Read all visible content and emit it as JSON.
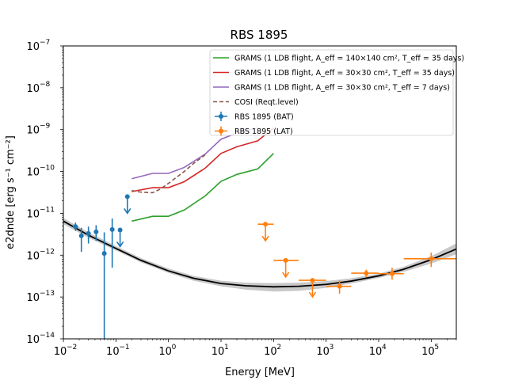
{
  "chart_data": {
    "type": "scatter",
    "title": "RBS 1895",
    "xlabel": "Energy [MeV]",
    "ylabel": "e2dnde [erg s⁻¹ cm⁻²]",
    "xscale": "log",
    "yscale": "log",
    "xlim": [
      0.01,
      300000
    ],
    "ylim": [
      1e-14,
      1e-07
    ],
    "grid": false,
    "legend_position": "top-right",
    "x_ticks": [
      {
        "label": "10",
        "exp": "−2",
        "value": 0.01
      },
      {
        "label": "10",
        "exp": "−1",
        "value": 0.1
      },
      {
        "label": "10",
        "exp": "0",
        "value": 1
      },
      {
        "label": "10",
        "exp": "1",
        "value": 10
      },
      {
        "label": "10",
        "exp": "2",
        "value": 100
      },
      {
        "label": "10",
        "exp": "3",
        "value": 1000
      },
      {
        "label": "10",
        "exp": "4",
        "value": 10000
      },
      {
        "label": "10",
        "exp": "5",
        "value": 100000
      }
    ],
    "y_ticks": [
      {
        "label": "10",
        "exp": "−14",
        "value": 1e-14
      },
      {
        "label": "10",
        "exp": "−13",
        "value": 1e-13
      },
      {
        "label": "10",
        "exp": "−12",
        "value": 1e-12
      },
      {
        "label": "10",
        "exp": "−11",
        "value": 1e-11
      },
      {
        "label": "10",
        "exp": "−10",
        "value": 1e-10
      },
      {
        "label": "10",
        "exp": "−9",
        "value": 1e-09
      },
      {
        "label": "10",
        "exp": "−8",
        "value": 1e-08
      },
      {
        "label": "10",
        "exp": "−7",
        "value": 1e-07
      }
    ],
    "series": [
      {
        "name": "GRAMS (1 LDB flight, A_eff = 140×140 cm², T_eff = 35 days)",
        "color": "#2ca02c",
        "kind": "line",
        "x": [
          0.2,
          0.5,
          1,
          2,
          5,
          10,
          20,
          50,
          100
        ],
        "y": [
          6.5e-12,
          8.5e-12,
          8.5e-12,
          1.2e-11,
          2.6e-11,
          5.8e-11,
          8.5e-11,
          1.15e-10,
          2.7e-10
        ]
      },
      {
        "name": "GRAMS (1 LDB flight, A_eff = 30×30 cm², T_eff = 35 days)",
        "color": "#d62728",
        "kind": "line",
        "x": [
          0.2,
          0.5,
          1,
          2,
          5,
          10,
          20,
          50,
          100
        ],
        "y": [
          3.3e-11,
          4.1e-11,
          4.1e-11,
          5.7e-11,
          1.2e-10,
          2.7e-10,
          3.9e-10,
          5.4e-10,
          1.1e-09
        ]
      },
      {
        "name": "GRAMS (1 LDB flight, A_eff = 30×30 cm², T_eff = 7 days)",
        "color": "#9467bd",
        "kind": "line",
        "x": [
          0.2,
          0.5,
          1,
          2,
          5,
          10,
          20,
          50
        ],
        "y": [
          6.7e-11,
          9e-11,
          9e-11,
          1.25e-10,
          2.6e-10,
          5.9e-10,
          8.3e-10,
          1.1e-09
        ]
      },
      {
        "name": "COSI (Reqt.level)",
        "color": "#8c564b",
        "kind": "dashed",
        "x": [
          0.2,
          0.3,
          0.5,
          0.7,
          1,
          2,
          3,
          5
        ],
        "y": [
          3.5e-11,
          3.2e-11,
          3.1e-11,
          3.8e-11,
          5.2e-11,
          1e-10,
          1.55e-10,
          2.5e-10
        ]
      },
      {
        "name": "RBS 1895 (BAT)",
        "color": "#1f77b4",
        "kind": "errorbar",
        "points": [
          {
            "x": 0.017,
            "xlo": 0.015,
            "xhi": 0.019,
            "y": 4.8e-12,
            "ylo": 3.8e-12,
            "yhi": 6e-12,
            "ul": false
          },
          {
            "x": 0.022,
            "xlo": 0.02,
            "xhi": 0.024,
            "y": 2.9e-12,
            "ylo": 1.2e-12,
            "yhi": 4.5e-12,
            "ul": false
          },
          {
            "x": 0.03,
            "xlo": 0.027,
            "xhi": 0.033,
            "y": 3.3e-12,
            "ylo": 1.9e-12,
            "yhi": 4.8e-12,
            "ul": false
          },
          {
            "x": 0.042,
            "xlo": 0.038,
            "xhi": 0.046,
            "y": 3.6e-12,
            "ylo": 2.2e-12,
            "yhi": 5.2e-12,
            "ul": false
          },
          {
            "x": 0.06,
            "xlo": 0.055,
            "xhi": 0.065,
            "y": 1.1e-12,
            "ylo": 1e-14,
            "yhi": 3.5e-12,
            "ul": false
          },
          {
            "x": 0.085,
            "xlo": 0.078,
            "xhi": 0.092,
            "y": 4.1e-12,
            "ylo": 5e-13,
            "yhi": 7.5e-12,
            "ul": false
          },
          {
            "x": 0.12,
            "xlo": 0.11,
            "xhi": 0.13,
            "y": 4e-12,
            "ul": true
          },
          {
            "x": 0.165,
            "xlo": 0.155,
            "xhi": 0.175,
            "y": 2.5e-11,
            "ul": true
          }
        ]
      },
      {
        "name": "RBS 1895 (LAT)",
        "color": "#ff7f0e",
        "kind": "errorbar",
        "points": [
          {
            "x": 70,
            "xlo": 50,
            "xhi": 100,
            "y": 5.5e-12,
            "ul": true
          },
          {
            "x": 170,
            "xlo": 100,
            "xhi": 300,
            "y": 7.5e-13,
            "ul": true
          },
          {
            "x": 550,
            "xlo": 300,
            "xhi": 1000,
            "y": 2.5e-13,
            "ul": true
          },
          {
            "x": 1800,
            "xlo": 1000,
            "xhi": 3000,
            "y": 1.8e-13,
            "ylo": 1.2e-13,
            "yhi": 2.5e-13,
            "ul": false
          },
          {
            "x": 5800,
            "xlo": 3000,
            "xhi": 10000,
            "y": 3.7e-13,
            "ylo": 3e-13,
            "yhi": 4.5e-13,
            "ul": false
          },
          {
            "x": 18000,
            "xlo": 10000,
            "xhi": 30000,
            "y": 3.6e-13,
            "ylo": 2.6e-13,
            "yhi": 5e-13,
            "ul": false
          },
          {
            "x": 100000,
            "xlo": 30000,
            "xhi": 300000,
            "y": 8.2e-13,
            "ylo": 5.2e-13,
            "yhi": 1.15e-12,
            "ul": false
          }
        ]
      },
      {
        "kind": "model",
        "color": "#000000",
        "band_color": "#c8c8c8",
        "x": [
          0.01,
          0.03,
          0.1,
          0.3,
          1,
          3,
          10,
          30,
          100,
          300,
          1000,
          3000,
          10000,
          30000,
          100000,
          300000
        ],
        "y": [
          6.5e-12,
          3e-12,
          1.45e-12,
          7.5e-13,
          4.2e-13,
          2.8e-13,
          2.1e-13,
          1.85e-13,
          1.75e-13,
          1.8e-13,
          2e-13,
          2.4e-13,
          3.2e-13,
          4.6e-13,
          7.8e-13,
          1.4e-12
        ],
        "band_lo": [
          5.5e-12,
          2.6e-12,
          1.3e-12,
          6.7e-13,
          3.75e-13,
          2.45e-13,
          1.8e-13,
          1.5e-13,
          1.35e-13,
          1.4e-13,
          1.65e-13,
          2.1e-13,
          2.85e-13,
          4e-13,
          6.3e-13,
          1.05e-12
        ],
        "band_hi": [
          7.7e-12,
          3.5e-12,
          1.65e-12,
          8.5e-13,
          4.8e-13,
          3.2e-13,
          2.45e-13,
          2.2e-13,
          2.15e-13,
          2.2e-13,
          2.4e-13,
          2.8e-13,
          3.6e-13,
          5.3e-13,
          9.5e-13,
          1.9e-12
        ]
      }
    ],
    "legend": [
      {
        "kind": "line",
        "color": "#2ca02c",
        "text": "GRAMS (1 LDB flight, ",
        "math": "A_eff = 140×140 cm², T_eff = 35 days)"
      },
      {
        "kind": "line",
        "color": "#d62728",
        "text": "GRAMS (1 LDB flight, ",
        "math": "A_eff = 30×30 cm², T_eff = 35 days)"
      },
      {
        "kind": "line",
        "color": "#9467bd",
        "text": "GRAMS (1 LDB flight, ",
        "math": "A_eff = 30×30 cm², T_eff = 7 days)"
      },
      {
        "kind": "dashed",
        "color": "#8c564b",
        "text": "COSI (Reqt.level)",
        "math": ""
      },
      {
        "kind": "errorbar",
        "color": "#1f77b4",
        "text": "RBS 1895 (BAT)",
        "math": ""
      },
      {
        "kind": "errorbar",
        "color": "#ff7f0e",
        "text": "RBS 1895 (LAT)",
        "math": ""
      }
    ]
  }
}
